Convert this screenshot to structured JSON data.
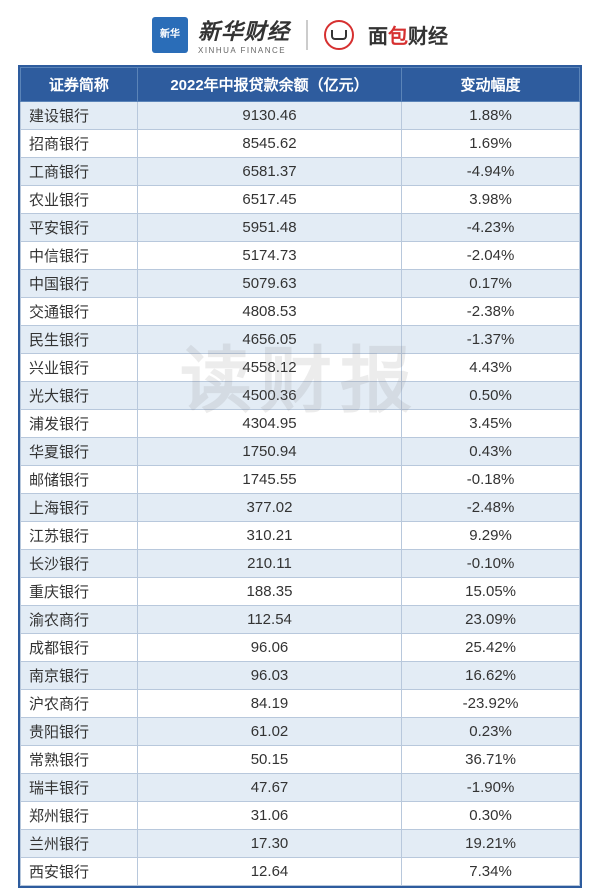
{
  "header": {
    "logo_text": "新华",
    "brand_cn": "新华财经",
    "brand_en": "XINHUA FINANCE",
    "brand_right_pre": "面",
    "brand_right_red": "包",
    "brand_right_post": "财经"
  },
  "watermark": "读财报",
  "table": {
    "columns": [
      "证券简称",
      "2022年中报贷款余额（亿元）",
      "变动幅度"
    ],
    "header_bg": "#2e5c9e",
    "header_fg": "#ffffff",
    "row_alt_bg": "#e3ecf5",
    "row_bg": "#ffffff",
    "border_color": "#2e5c9e",
    "inner_border": "#b8c8dc",
    "rows": [
      {
        "name": "建设银行",
        "value": "9130.46",
        "change": "1.88%"
      },
      {
        "name": "招商银行",
        "value": "8545.62",
        "change": "1.69%"
      },
      {
        "name": "工商银行",
        "value": "6581.37",
        "change": "-4.94%"
      },
      {
        "name": "农业银行",
        "value": "6517.45",
        "change": "3.98%"
      },
      {
        "name": "平安银行",
        "value": "5951.48",
        "change": "-4.23%"
      },
      {
        "name": "中信银行",
        "value": "5174.73",
        "change": "-2.04%"
      },
      {
        "name": "中国银行",
        "value": "5079.63",
        "change": "0.17%"
      },
      {
        "name": "交通银行",
        "value": "4808.53",
        "change": "-2.38%"
      },
      {
        "name": "民生银行",
        "value": "4656.05",
        "change": "-1.37%"
      },
      {
        "name": "兴业银行",
        "value": "4558.12",
        "change": "4.43%"
      },
      {
        "name": "光大银行",
        "value": "4500.36",
        "change": "0.50%"
      },
      {
        "name": "浦发银行",
        "value": "4304.95",
        "change": "3.45%"
      },
      {
        "name": "华夏银行",
        "value": "1750.94",
        "change": "0.43%"
      },
      {
        "name": "邮储银行",
        "value": "1745.55",
        "change": "-0.18%"
      },
      {
        "name": "上海银行",
        "value": "377.02",
        "change": "-2.48%"
      },
      {
        "name": "江苏银行",
        "value": "310.21",
        "change": "9.29%"
      },
      {
        "name": "长沙银行",
        "value": "210.11",
        "change": "-0.10%"
      },
      {
        "name": "重庆银行",
        "value": "188.35",
        "change": "15.05%"
      },
      {
        "name": "渝农商行",
        "value": "112.54",
        "change": "23.09%"
      },
      {
        "name": "成都银行",
        "value": "96.06",
        "change": "25.42%"
      },
      {
        "name": "南京银行",
        "value": "96.03",
        "change": "16.62%"
      },
      {
        "name": "沪农商行",
        "value": "84.19",
        "change": "-23.92%"
      },
      {
        "name": "贵阳银行",
        "value": "61.02",
        "change": "0.23%"
      },
      {
        "name": "常熟银行",
        "value": "50.15",
        "change": "36.71%"
      },
      {
        "name": "瑞丰银行",
        "value": "47.67",
        "change": "-1.90%"
      },
      {
        "name": "郑州银行",
        "value": "31.06",
        "change": "0.30%"
      },
      {
        "name": "兰州银行",
        "value": "17.30",
        "change": "19.21%"
      },
      {
        "name": "西安银行",
        "value": "12.64",
        "change": "7.34%"
      }
    ]
  }
}
